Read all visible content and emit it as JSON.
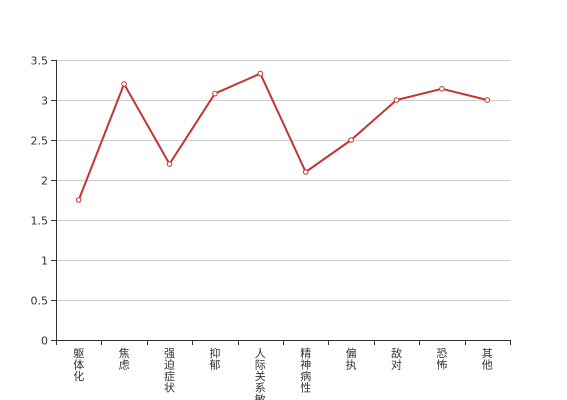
{
  "chart_data": {
    "type": "line",
    "categories": [
      "躯体化",
      "焦虑",
      "强迫症状",
      "抑郁",
      "人际关系敏感",
      "精神病性",
      "偏执",
      "敌对",
      "恐怖",
      "其他"
    ],
    "series": [
      {
        "values": [
          1.75,
          3.2,
          2.2,
          3.08,
          3.33,
          2.1,
          2.5,
          3.0,
          3.14,
          3.0
        ]
      }
    ],
    "ylim": [
      0,
      3.5
    ],
    "yticks": [
      0,
      0.5,
      1,
      1.5,
      2,
      2.5,
      3,
      3.5
    ],
    "ytick_labels": [
      "0",
      "0.5",
      "1",
      "1.5",
      "2",
      "2.5",
      "3",
      "3.5"
    ],
    "grid": true,
    "line_color": "#c23531",
    "grid_color": "#cccccc",
    "axis_color": "#333333"
  }
}
